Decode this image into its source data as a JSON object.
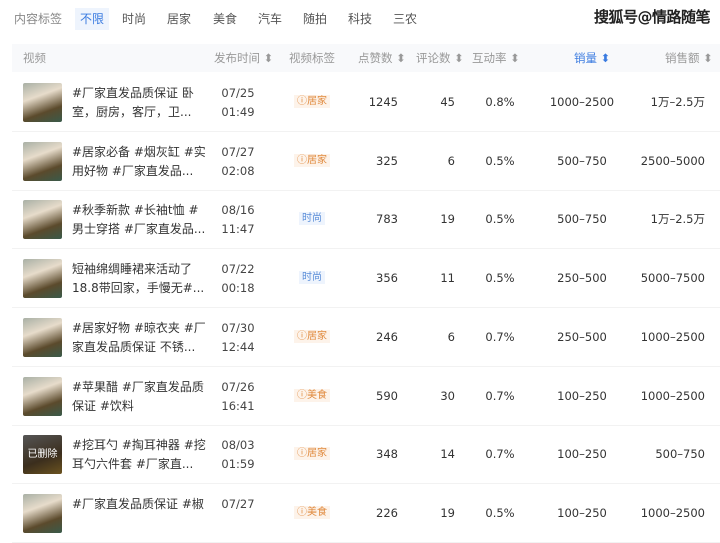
{
  "filter": {
    "label": "内容标签",
    "options": [
      "不限",
      "时尚",
      "居家",
      "美食",
      "汽车",
      "随拍",
      "科技",
      "三农"
    ],
    "selected": "不限"
  },
  "watermark": "搜狐号@情路随笔",
  "table": {
    "headers": {
      "video": "视频",
      "time": "发布时间 ⬍",
      "tag": "视频标签",
      "likes": "点赞数 ⬍",
      "comments": "评论数 ⬍",
      "rate": "互动率 ⬍",
      "sales": "销量 ⬍",
      "revenue": "销售额 ⬍"
    },
    "rows": [
      {
        "title": "#厂家直发品质保证 卧室，厨房，客厅，卫...",
        "date": "07/25",
        "clock": "01:49",
        "tag": "ⓘ居家",
        "tag_color": "orange",
        "likes": "1245",
        "comments": "45",
        "rate": "0.8%",
        "sales": "1000–2500",
        "revenue": "1万–2.5万"
      },
      {
        "title": "#居家必备 #烟灰缸 #实用好物 #厂家直发品...",
        "date": "07/27",
        "clock": "02:08",
        "tag": "ⓘ居家",
        "tag_color": "orange",
        "likes": "325",
        "comments": "6",
        "rate": "0.5%",
        "sales": "500–750",
        "revenue": "2500–5000"
      },
      {
        "title": "#秋季新款 #长袖t恤 #男士穿搭 #厂家直发品...",
        "date": "08/16",
        "clock": "11:47",
        "tag": "时尚",
        "tag_color": "blue",
        "likes": "783",
        "comments": "19",
        "rate": "0.5%",
        "sales": "500–750",
        "revenue": "1万–2.5万"
      },
      {
        "title": "短袖绵绸睡裙来活动了18.8带回家，手慢无#...",
        "date": "07/22",
        "clock": "00:18",
        "tag": "时尚",
        "tag_color": "blue",
        "likes": "356",
        "comments": "11",
        "rate": "0.5%",
        "sales": "250–500",
        "revenue": "5000–7500"
      },
      {
        "title": "#居家好物 #晾衣夹 #厂家直发品质保证 不锈...",
        "date": "07/30",
        "clock": "12:44",
        "tag": "ⓘ居家",
        "tag_color": "orange",
        "likes": "246",
        "comments": "6",
        "rate": "0.7%",
        "sales": "250–500",
        "revenue": "1000–2500"
      },
      {
        "title": "#苹果醋 #厂家直发品质保证 #饮料",
        "date": "07/26",
        "clock": "16:41",
        "tag": "ⓘ美食",
        "tag_color": "orange",
        "likes": "590",
        "comments": "30",
        "rate": "0.7%",
        "sales": "100–250",
        "revenue": "1000–2500"
      },
      {
        "title": "#挖耳勺 #掏耳神器 #挖耳勺六件套 #厂家直...",
        "date": "08/03",
        "clock": "01:59",
        "tag": "ⓘ居家",
        "tag_color": "orange",
        "likes": "348",
        "comments": "14",
        "rate": "0.7%",
        "sales": "100–250",
        "revenue": "500–750",
        "thumb_label": "已删除"
      },
      {
        "title": "#厂家直发品质保证 #椒",
        "date": "07/27",
        "clock": "",
        "tag": "ⓘ美食",
        "tag_color": "orange",
        "likes": "226",
        "comments": "19",
        "rate": "0.5%",
        "sales": "100–250",
        "revenue": "1000–2500"
      }
    ]
  }
}
